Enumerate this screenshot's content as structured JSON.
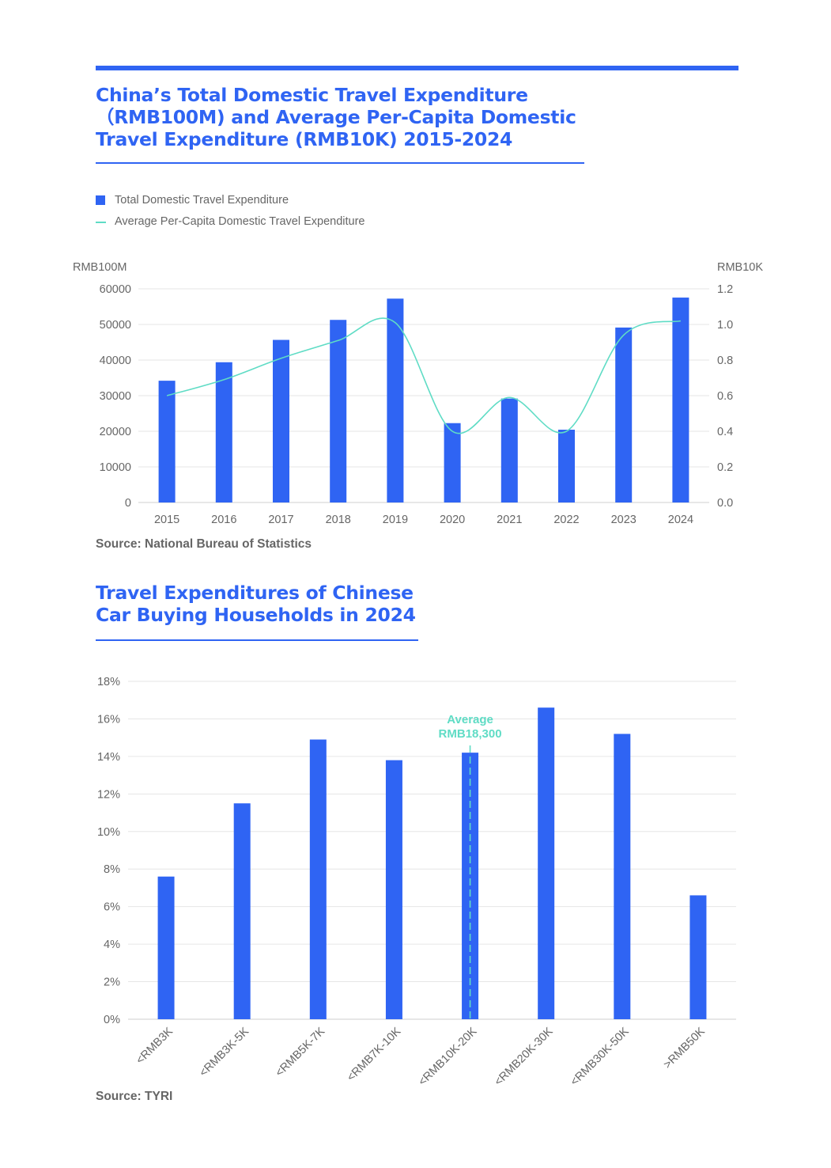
{
  "colors": {
    "accent": "#2f64f3",
    "line": "#5fdcc5",
    "grid": "#e6e6e6",
    "axis_text": "#666666"
  },
  "chart1": {
    "title": "China’s Total Domestic Travel Expenditure\n（RMB100M) and Average Per-Capita Domestic\nTravel Expenditure (RMB10K) 2015-2024",
    "legend": {
      "bar": "Total Domestic Travel Expenditure",
      "line": "Average Per-Capita Domestic Travel Expenditure"
    },
    "source": "Source: National Bureau of Statistics"
  },
  "chart2": {
    "title": "Travel Expenditures of Chinese\nCar Buying Households in 2024",
    "source": "Source: TYRI"
  },
  "chart_data": [
    {
      "type": "bar",
      "title": "China’s Total Domestic Travel Expenditure (RMB100M) and Average Per-Capita Domestic Travel Expenditure (RMB10K) 2015-2024",
      "categories": [
        "2015",
        "2016",
        "2017",
        "2018",
        "2019",
        "2020",
        "2021",
        "2022",
        "2023",
        "2024"
      ],
      "series": [
        {
          "name": "Total Domestic Travel Expenditure",
          "type": "bar",
          "axis": "left",
          "values": [
            34195,
            39390,
            45661,
            51278,
            57251,
            22286,
            29191,
            20444,
            49133,
            57543
          ]
        },
        {
          "name": "Average Per-Capita Domestic Travel Expenditure",
          "type": "line",
          "axis": "right",
          "values": [
            0.6,
            0.69,
            0.81,
            0.91,
            1.01,
            0.4,
            0.59,
            0.4,
            0.94,
            1.02
          ]
        }
      ],
      "ylabel_left": "RMB100M",
      "ylabel_right": "RMB10K",
      "ylim_left": [
        0,
        60000
      ],
      "ylim_right": [
        0,
        1.2
      ],
      "yticks_left": [
        "0",
        "10000",
        "20000",
        "30000",
        "40000",
        "50000",
        "60000"
      ],
      "yticks_right": [
        "0.0",
        "0.2",
        "0.4",
        "0.6",
        "0.8",
        "1.0",
        "1.2"
      ],
      "grid": true,
      "legend_position": "top-left"
    },
    {
      "type": "bar",
      "title": "Travel Expenditures of Chinese Car Buying Households in 2024",
      "categories": [
        "<RMB3K",
        "<RMB3K-5K",
        "<RMB5K-7K",
        "<RMB7K-10K",
        "<RMB10K-20K",
        "<RMB20K-30K",
        "<RMB30K-50K",
        ">RMB50K"
      ],
      "values": [
        7.6,
        11.5,
        14.9,
        13.8,
        14.2,
        16.6,
        15.2,
        6.6
      ],
      "ylim": [
        0,
        18
      ],
      "yticks": [
        "0%",
        "2%",
        "4%",
        "6%",
        "8%",
        "10%",
        "12%",
        "14%",
        "16%",
        "18%"
      ],
      "grid": true,
      "annotation": {
        "category": "<RMB10K-20K",
        "line1": "Average",
        "line2": "RMB18,300"
      }
    }
  ]
}
